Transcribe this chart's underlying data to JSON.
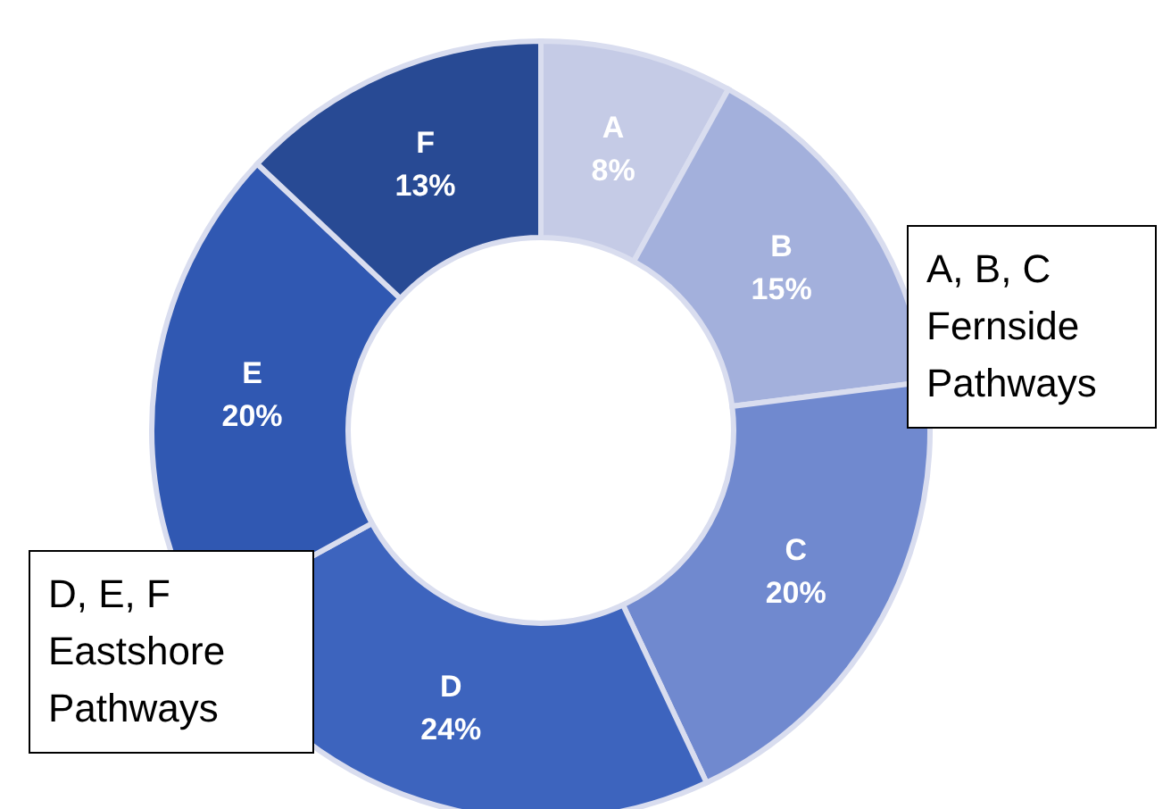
{
  "chart_data": {
    "type": "donut",
    "categories": [
      "A",
      "B",
      "C",
      "D",
      "E",
      "F"
    ],
    "values": [
      8,
      15,
      20,
      24,
      20,
      13
    ],
    "colors": [
      "#c5cbe6",
      "#a3b0dc",
      "#7089cf",
      "#3d64be",
      "#3058b2",
      "#284a94"
    ],
    "value_labels": [
      "8%",
      "15%",
      "20%",
      "24%",
      "20%",
      "13%"
    ],
    "annotations": [
      "A, B, C Fernside Pathways",
      "D, E, F Eastshore Pathways"
    ]
  }
}
